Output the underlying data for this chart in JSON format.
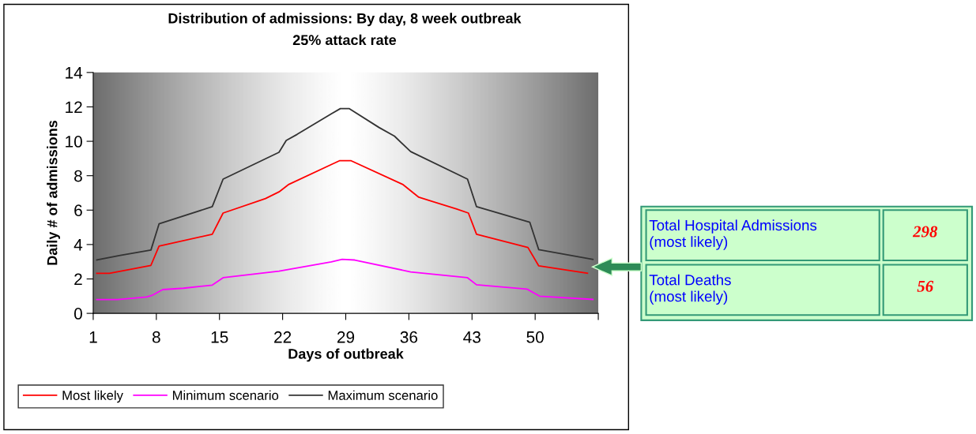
{
  "chart_data": {
    "type": "line",
    "title": "Distribution of admissions: By day, 8 week outbreak",
    "subtitle": "25% attack rate",
    "xlabel": "Days of outbreak",
    "ylabel": "Daily # of admissions",
    "xlim": [
      1,
      57
    ],
    "xticks": [
      1,
      8,
      15,
      22,
      29,
      36,
      43,
      50,
      {
        "value": 57,
        "label": null
      }
    ],
    "ylim": [
      0,
      14
    ],
    "yticks": [
      0,
      2,
      4,
      6,
      8,
      10,
      12,
      14
    ],
    "grid": false,
    "legend": "bottom",
    "line_style": "solid",
    "marker": "none",
    "series": [
      {
        "name": "Most likely",
        "color": "#ff0000",
        "x": [
          1.4,
          2.8,
          7.4,
          8.3,
          14.2,
          15.4,
          20.1,
          21.6,
          22.7,
          27.4,
          28.3,
          29.6,
          35.3,
          37.1,
          41.3,
          42.6,
          43.5,
          49.2,
          50.4,
          55.8
        ],
        "values": [
          2.33,
          2.33,
          2.79,
          3.91,
          4.6,
          5.83,
          6.67,
          7.06,
          7.5,
          8.65,
          8.87,
          8.87,
          7.5,
          6.75,
          6.06,
          5.83,
          4.6,
          3.83,
          2.76,
          2.33
        ]
      },
      {
        "name": "Minimum scenario",
        "color": "#ff00ff",
        "x": [
          1.4,
          3.7,
          6.9,
          7.5,
          8.7,
          11.0,
          14.2,
          15.4,
          21.6,
          27.4,
          28.6,
          30.0,
          36.2,
          42.5,
          43.5,
          49.1,
          50.5,
          56.4
        ],
        "values": [
          0.8,
          0.8,
          0.95,
          1.04,
          1.38,
          1.46,
          1.64,
          2.07,
          2.45,
          2.99,
          3.14,
          3.1,
          2.41,
          2.07,
          1.66,
          1.41,
          1.0,
          0.81
        ]
      },
      {
        "name": "Maximum scenario",
        "color": "#333333",
        "x": [
          1.4,
          4.0,
          7.4,
          8.3,
          14.2,
          15.4,
          21.6,
          22.4,
          23.6,
          27.4,
          28.4,
          29.4,
          32.7,
          34.4,
          36.2,
          42.5,
          43.5,
          49.4,
          50.4,
          56.4
        ],
        "values": [
          3.1,
          3.37,
          3.68,
          5.2,
          6.2,
          7.8,
          9.36,
          10.05,
          10.4,
          11.6,
          11.9,
          11.9,
          10.8,
          10.3,
          9.4,
          7.8,
          6.2,
          5.3,
          3.7,
          3.14
        ]
      }
    ],
    "annotations": [
      "Total Hospital Admissions\n(most likely)",
      "298",
      "Total Deaths\n(most likely)",
      "56"
    ]
  }
}
